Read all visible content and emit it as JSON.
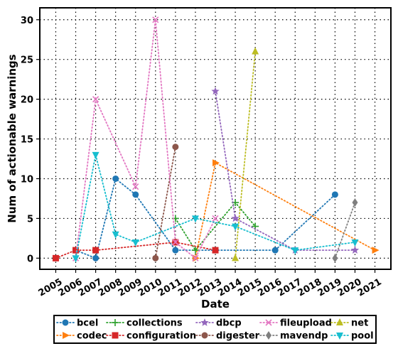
{
  "chart_data": {
    "type": "line",
    "title": "",
    "xlabel": "Date",
    "ylabel": "Num of actionable warnings",
    "x_ticks": [
      "2005",
      "2006",
      "2007",
      "2008",
      "2009",
      "2010",
      "2011",
      "2012",
      "2013",
      "2014",
      "2015",
      "2016",
      "2017",
      "2018",
      "2019",
      "2020",
      "2021"
    ],
    "y_ticks": [
      0,
      5,
      10,
      15,
      20,
      25,
      30
    ],
    "xlim": [
      2004.2,
      2021.8
    ],
    "ylim": [
      -1.4,
      31.5
    ],
    "grid": true,
    "legend_position": "bottom",
    "series": [
      {
        "name": "bcel",
        "color": "#1f77b4",
        "marker": "circle",
        "points": [
          [
            2006,
            1
          ],
          [
            2007,
            0
          ],
          [
            2008,
            10
          ],
          [
            2009,
            8
          ],
          [
            2011,
            1
          ],
          [
            2016,
            1
          ],
          [
            2019,
            8
          ]
        ]
      },
      {
        "name": "codec",
        "color": "#ff7f0e",
        "marker": "triangle-right",
        "points": [
          [
            2012,
            0
          ],
          [
            2013,
            12
          ],
          [
            2021,
            1
          ]
        ]
      },
      {
        "name": "collections",
        "color": "#2ca02c",
        "marker": "plus",
        "points": [
          [
            2011,
            5
          ],
          [
            2012,
            1
          ],
          [
            2014,
            7
          ],
          [
            2015,
            4
          ]
        ]
      },
      {
        "name": "configuration",
        "color": "#d62728",
        "marker": "square",
        "points": [
          [
            2005,
            0
          ],
          [
            2006,
            1
          ],
          [
            2007,
            1
          ],
          [
            2011,
            2
          ],
          [
            2013,
            1
          ]
        ]
      },
      {
        "name": "dbcp",
        "color": "#9467bd",
        "marker": "star",
        "points": [
          [
            2013,
            21
          ],
          [
            2014,
            5
          ],
          [
            2017,
            1
          ],
          [
            2020,
            1
          ]
        ]
      },
      {
        "name": "digester",
        "color": "#8c564b",
        "marker": "circle",
        "points": [
          [
            2010,
            0
          ],
          [
            2011,
            14
          ]
        ]
      },
      {
        "name": "fileupload",
        "color": "#e377c2",
        "marker": "x",
        "points": [
          [
            2006,
            0
          ],
          [
            2007,
            20
          ],
          [
            2009,
            9
          ],
          [
            2010,
            30
          ],
          [
            2011,
            2
          ],
          [
            2012,
            0
          ],
          [
            2013,
            5
          ]
        ]
      },
      {
        "name": "mavendp",
        "color": "#7f7f7f",
        "marker": "diamond",
        "points": [
          [
            2019,
            0
          ],
          [
            2020,
            7
          ]
        ]
      },
      {
        "name": "net",
        "color": "#bcbd22",
        "marker": "triangle-up",
        "points": [
          [
            2014,
            0
          ],
          [
            2015,
            26
          ]
        ]
      },
      {
        "name": "pool",
        "color": "#17becf",
        "marker": "triangle-down",
        "points": [
          [
            2006,
            0
          ],
          [
            2007,
            13
          ],
          [
            2008,
            3
          ],
          [
            2009,
            2
          ],
          [
            2012,
            5
          ],
          [
            2014,
            4
          ],
          [
            2017,
            1
          ],
          [
            2020,
            2
          ]
        ]
      }
    ],
    "legend_rows": [
      [
        "bcel",
        "collections",
        "dbcp",
        "fileupload",
        "net"
      ],
      [
        "codec",
        "configuration",
        "digester",
        "mavendp",
        "pool"
      ]
    ]
  }
}
